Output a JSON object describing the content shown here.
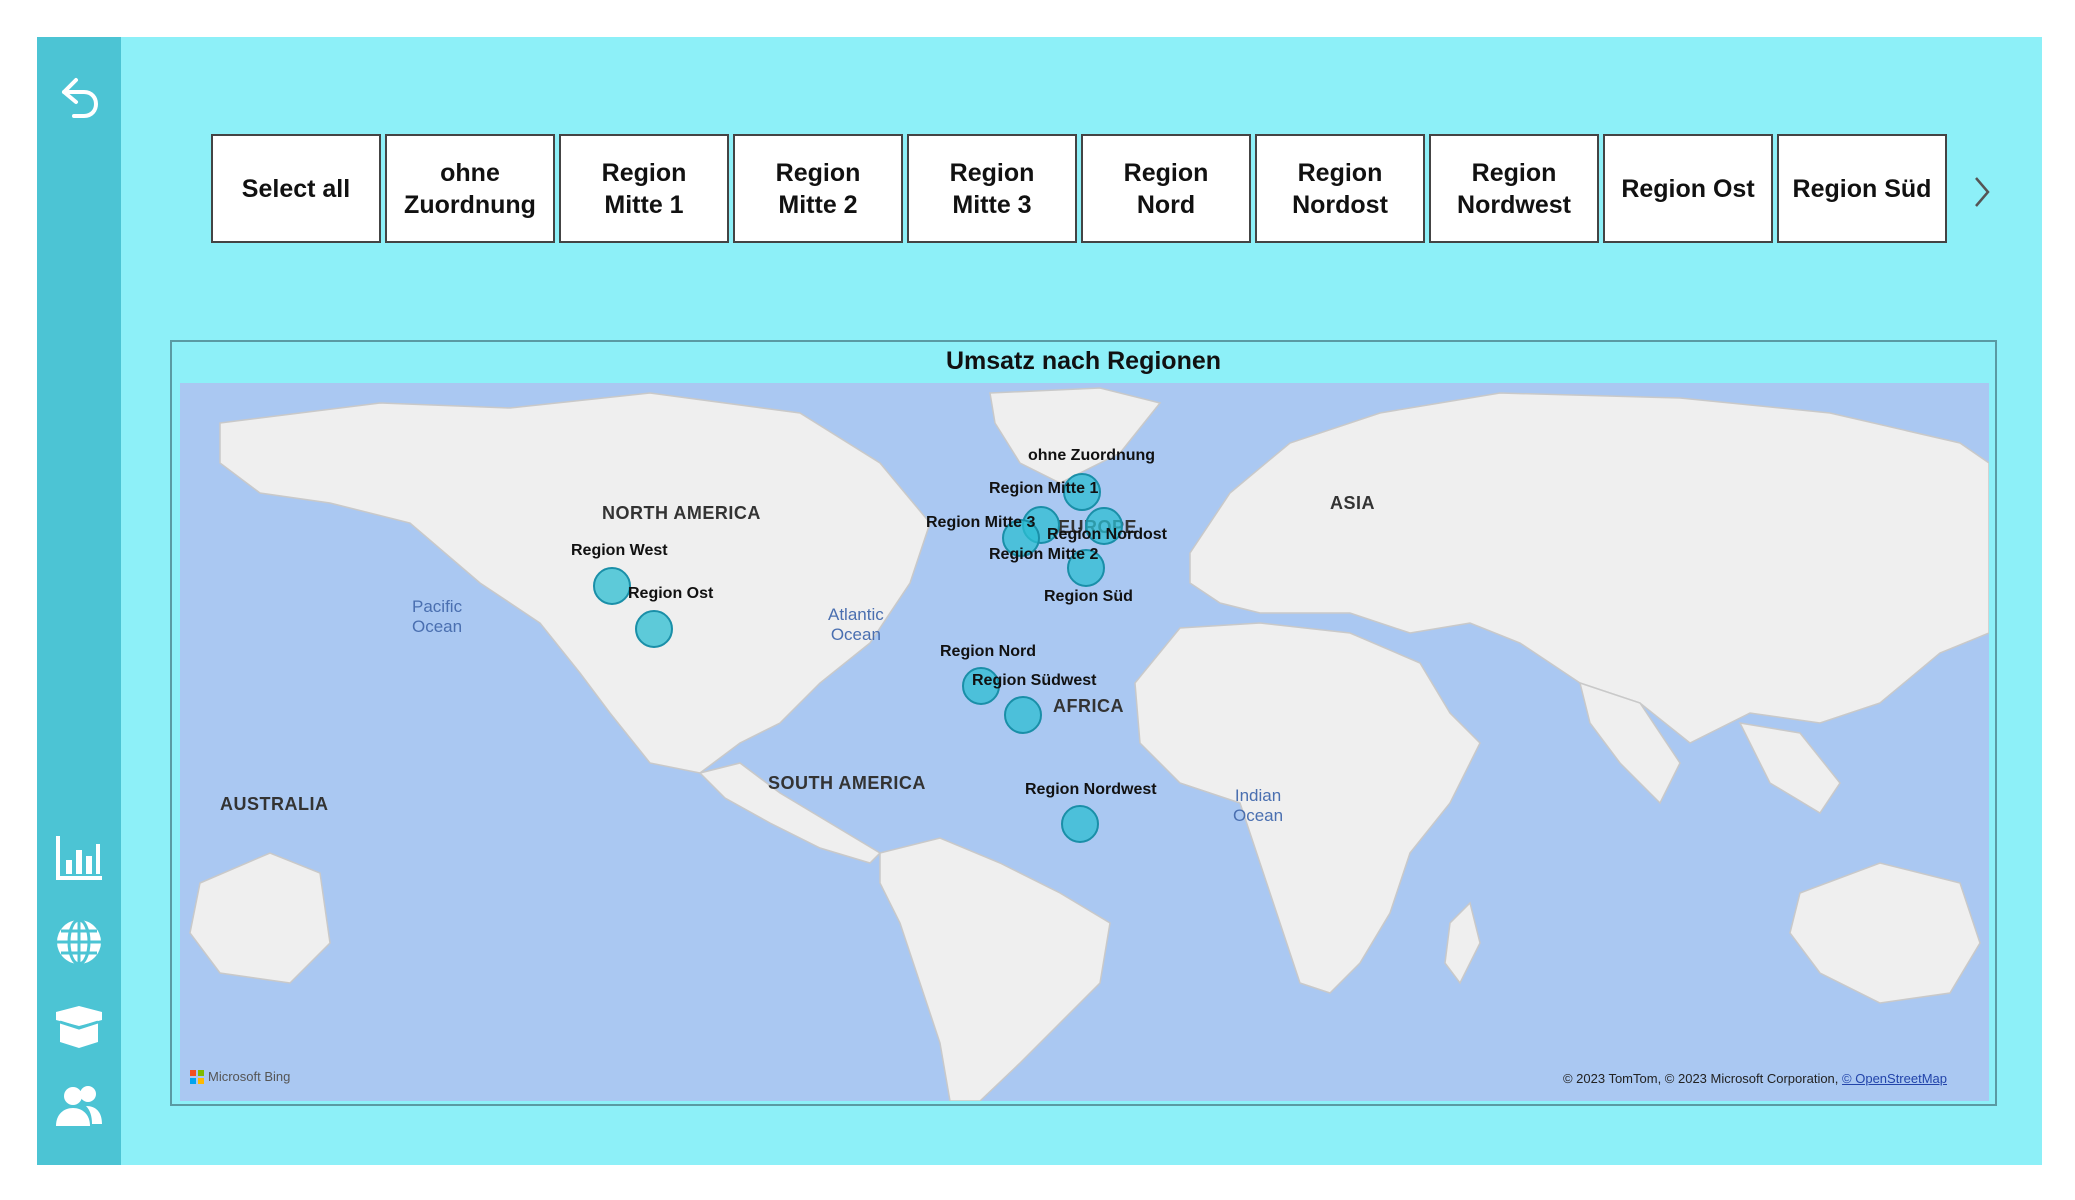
{
  "slicer": {
    "items": [
      {
        "label": "Select all"
      },
      {
        "label": "ohne\nZuordnung"
      },
      {
        "label": "Region\nMitte 1"
      },
      {
        "label": "Region\nMitte 2"
      },
      {
        "label": "Region\nMitte 3"
      },
      {
        "label": "Region\nNord"
      },
      {
        "label": "Region\nNordost"
      },
      {
        "label": "Region\nNordwest"
      },
      {
        "label": "Region Ost"
      },
      {
        "label": "Region Süd"
      }
    ]
  },
  "map": {
    "title": "Umsatz nach Regionen",
    "continents": [
      "NORTH AMERICA",
      "EUROPE",
      "ASIA",
      "AFRICA",
      "SOUTH AMERICA",
      "AUSTRALIA"
    ],
    "oceans": [
      "Pacific\nOcean",
      "Atlantic\nOcean",
      "Indian\nOcean"
    ],
    "regions": [
      {
        "label": "ohne Zuordnung"
      },
      {
        "label": "Region Mitte 1"
      },
      {
        "label": "Region Mitte 3"
      },
      {
        "label": "Region Nordost"
      },
      {
        "label": "Region Mitte 2"
      },
      {
        "label": "Region Süd"
      },
      {
        "label": "Region West"
      },
      {
        "label": "Region Ost"
      },
      {
        "label": "Region Nord"
      },
      {
        "label": "Region Südwest"
      },
      {
        "label": "Region Nordwest"
      }
    ],
    "attribution_brand": "Microsoft Bing",
    "copyright_text": "© 2023 TomTom, © 2023 Microsoft Corporation,",
    "copyright_link": "© OpenStreetMap"
  },
  "colors": {
    "canvas": "#8df0f8",
    "sidebar": "#4cc4d4",
    "bubble": "#2cbed2",
    "ocean": "#aac8f2",
    "land": "#efefef"
  },
  "icons": {
    "back": "undo-arrow-icon",
    "nav": [
      "bar-chart-icon",
      "globe-icon",
      "box-icon",
      "users-icon"
    ]
  }
}
